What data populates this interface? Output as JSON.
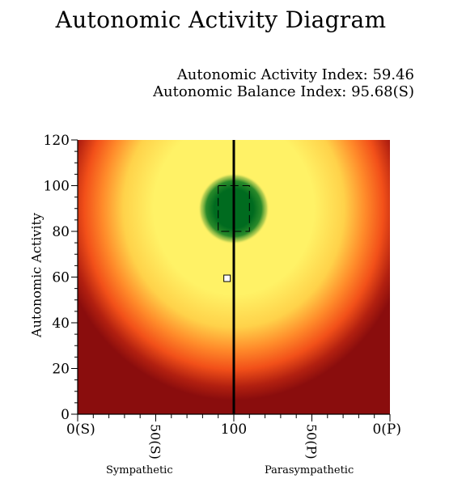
{
  "title": "Autonomic Activity Diagram",
  "indices": {
    "activity": "Autonomic Activity Index: 59.46",
    "balance": "Autonomic Balance Index: 95.68(S)"
  },
  "labels": {
    "sympathetic": "Sympathetic",
    "parasympathetic": "Parasympathetic"
  },
  "colors": {
    "outer": "#8a0d0d",
    "orange": "#ff5a1e",
    "yellow": "#fff266",
    "green_center": "#006b1f",
    "marker_fill": "#ffffff"
  },
  "chart_data": {
    "type": "heatmap",
    "title": "Autonomic Activity Diagram",
    "ylabel": "Autonomic Activity",
    "xlabel": "",
    "x_ticks": [
      "0(S)",
      "50(S)",
      "100",
      "50(P)",
      "0(P)"
    ],
    "y_ticks": [
      0,
      20,
      40,
      60,
      80,
      100,
      120
    ],
    "ylim": [
      0,
      120
    ],
    "target_region": {
      "balance": [
        90,
        110
      ],
      "activity": [
        80,
        100
      ]
    },
    "center_line_balance": 100,
    "point": {
      "balance": 95.68,
      "balance_side": "S",
      "activity": 59.46
    }
  }
}
